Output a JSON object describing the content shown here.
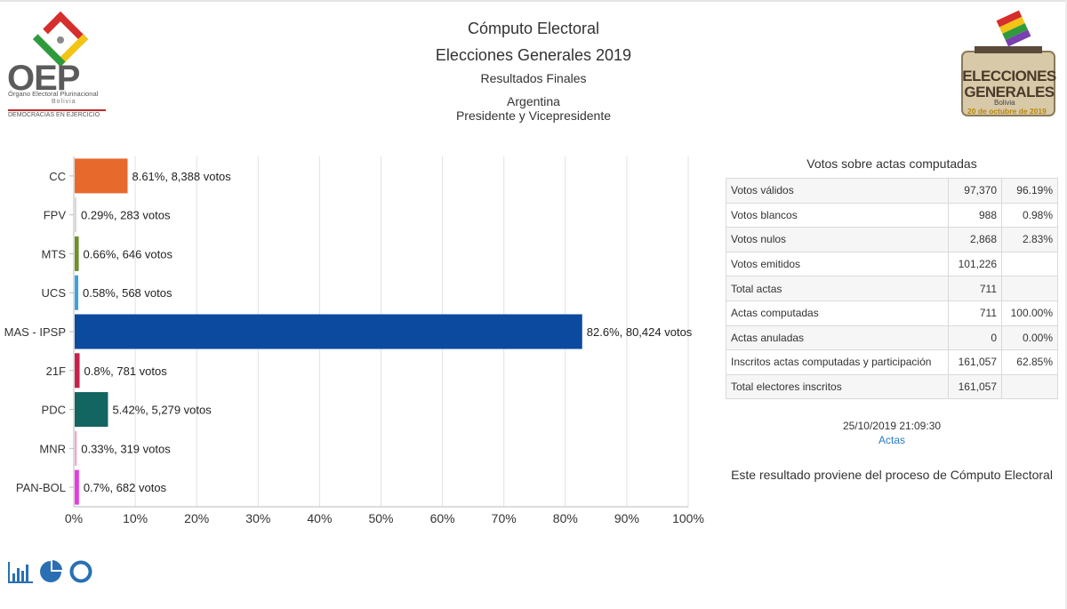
{
  "header": {
    "title": "Cómputo Electoral",
    "election": "Elecciones Generales 2019",
    "result_type": "Resultados Finales",
    "location": "Argentina",
    "office": "Presidente y Vicepresidente"
  },
  "logos": {
    "oep": {
      "acronym": "OEP",
      "name": "Órgano Electoral Plurinacional",
      "country": "Bolivia",
      "slogan": "DEMOCRACIAS EN EJERCICIO"
    },
    "elecciones": {
      "line1": "ELECCIONES",
      "line2": "GENERALES",
      "country": "Bolivia",
      "date": "20 de octubre de 2019"
    }
  },
  "chart_data": {
    "type": "bar",
    "orientation": "horizontal",
    "categories": [
      "CC",
      "FPV",
      "MTS",
      "UCS",
      "MAS - IPSP",
      "21F",
      "PDC",
      "MNR",
      "PAN-BOL"
    ],
    "values": [
      8.61,
      0.29,
      0.66,
      0.58,
      82.6,
      0.8,
      5.42,
      0.33,
      0.7
    ],
    "votes": [
      8388,
      283,
      646,
      568,
      80424,
      781,
      5279,
      319,
      682
    ],
    "data_labels": [
      "8.61%,  8,388 votos",
      "0.29%,  283 votos",
      "0.66%,  646 votos",
      "0.58%,  568 votos",
      "82.6%,  80,424 votos",
      "0.8%,  781 votos",
      "5.42%,  5,279 votos",
      "0.33%,  319 votos",
      "0.7%,  682 votos"
    ],
    "colors": [
      "#e8692c",
      "#d9d9d9",
      "#6f8f2e",
      "#3aa3e0",
      "#0b4a9e",
      "#c8204a",
      "#136561",
      "#f2a9c8",
      "#e23de0"
    ],
    "xlim": [
      0,
      100
    ],
    "x_ticks": [
      "0%",
      "10%",
      "20%",
      "30%",
      "40%",
      "50%",
      "60%",
      "70%",
      "80%",
      "90%",
      "100%"
    ],
    "grid": true,
    "legend": "none"
  },
  "summary": {
    "title": "Votos sobre actas computadas",
    "rows": [
      {
        "label": "Votos válidos",
        "value": "97,370",
        "pct": "96.19%"
      },
      {
        "label": "Votos blancos",
        "value": "988",
        "pct": "0.98%"
      },
      {
        "label": "Votos nulos",
        "value": "2,868",
        "pct": "2.83%"
      },
      {
        "label": "Votos emitidos",
        "value": "101,226",
        "pct": ""
      },
      {
        "label": "Total actas",
        "value": "711",
        "pct": ""
      },
      {
        "label": "Actas computadas",
        "value": "711",
        "pct": "100.00%"
      },
      {
        "label": "Actas anuladas",
        "value": "0",
        "pct": "0.00%"
      },
      {
        "label": "Inscritos actas computadas y participación",
        "value": "161,057",
        "pct": "62.85%"
      },
      {
        "label": "Total electores inscritos",
        "value": "161,057",
        "pct": ""
      }
    ],
    "timestamp": "25/10/2019 21:09:30",
    "actas_link": "Actas",
    "source_note": "Este resultado proviene del proceso de Cómputo Electoral"
  },
  "view_icons": [
    "bar-chart-icon",
    "pie-chart-icon",
    "donut-chart-icon"
  ],
  "colors": {
    "accent_blue": "#2a7bc0",
    "icon_blue": "#2a6fb3"
  }
}
